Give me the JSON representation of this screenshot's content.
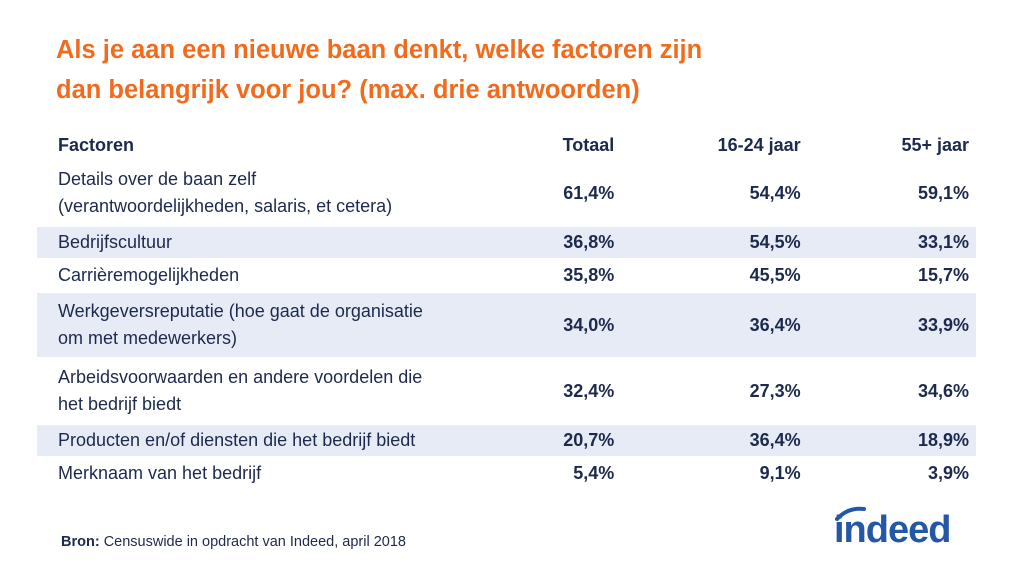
{
  "title": {
    "line1": "Als je aan een nieuwe baan denkt, welke factoren zijn",
    "line2": "dan belangrijk voor jou? (max. drie antwoorden)"
  },
  "table": {
    "headers": [
      "Factoren",
      "Totaal",
      "16-24 jaar",
      "55+ jaar"
    ],
    "rows": [
      {
        "factor_line1": "Details over de baan zelf",
        "factor_line2": "(verantwoordelijkheden, salaris, et cetera)",
        "totaal": "61,4%",
        "jong": "54,4%",
        "oud": "59,1%"
      },
      {
        "factor_line1": "Bedrijfscultuur",
        "factor_line2": "",
        "totaal": "36,8%",
        "jong": "54,5%",
        "oud": "33,1%"
      },
      {
        "factor_line1": "Carrièremogelijkheden",
        "factor_line2": "",
        "totaal": "35,8%",
        "jong": "45,5%",
        "oud": "15,7%"
      },
      {
        "factor_line1": "Werkgeversreputatie (hoe gaat de organisatie",
        "factor_line2": "om met medewerkers)",
        "totaal": "34,0%",
        "jong": "36,4%",
        "oud": "33,9%"
      },
      {
        "factor_line1": "Arbeidsvoorwaarden en andere voordelen die",
        "factor_line2": "het bedrijf biedt",
        "totaal": "32,4%",
        "jong": "27,3%",
        "oud": "34,6%"
      },
      {
        "factor_line1": "Producten en/of diensten die het bedrijf biedt",
        "factor_line2": "",
        "totaal": "20,7%",
        "jong": "36,4%",
        "oud": "18,9%"
      },
      {
        "factor_line1": "Merknaam van het bedrijf",
        "factor_line2": "",
        "totaal": "5,4%",
        "jong": "9,1%",
        "oud": "3,9%"
      }
    ]
  },
  "source": {
    "label": "Bron:",
    "text": " Censuswide in opdracht van Indeed, april 2018"
  },
  "logo": {
    "text": "indeed"
  },
  "colors": {
    "title": "#f26b1d",
    "text": "#1d2a4d",
    "shade": "#e6ebf6",
    "brand": "#2557a7"
  },
  "chart_data": {
    "type": "table",
    "title": "Als je aan een nieuwe baan denkt, welke factoren zijn dan belangrijk voor jou? (max. drie antwoorden)",
    "columns": [
      "Factoren",
      "Totaal",
      "16-24 jaar",
      "55+ jaar"
    ],
    "categories": [
      "Details over de baan zelf (verantwoordelijkheden, salaris, et cetera)",
      "Bedrijfscultuur",
      "Carrièremogelijkheden",
      "Werkgeversreputatie (hoe gaat de organisatie om met medewerkers)",
      "Arbeidsvoorwaarden en andere voordelen die het bedrijf biedt",
      "Producten en/of diensten die het bedrijf biedt",
      "Merknaam van het bedrijf"
    ],
    "series": [
      {
        "name": "Totaal",
        "values": [
          61.4,
          36.8,
          35.8,
          34.0,
          32.4,
          20.7,
          5.4
        ]
      },
      {
        "name": "16-24 jaar",
        "values": [
          54.4,
          54.5,
          45.5,
          36.4,
          27.3,
          36.4,
          9.1
        ]
      },
      {
        "name": "55+ jaar",
        "values": [
          59.1,
          33.1,
          15.7,
          33.9,
          34.6,
          18.9,
          3.9
        ]
      }
    ],
    "unit": "%"
  }
}
